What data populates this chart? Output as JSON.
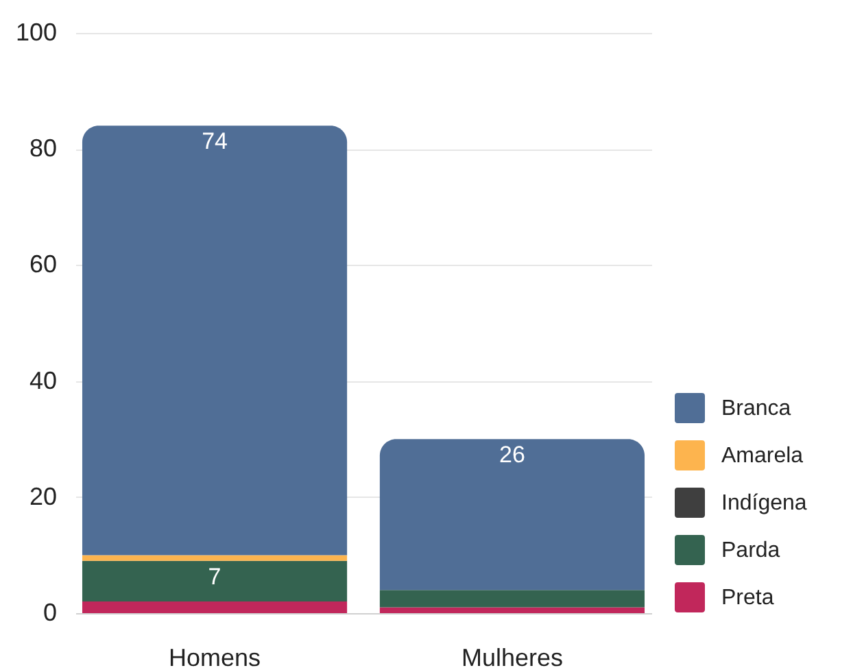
{
  "chart_data": {
    "type": "bar",
    "stacked": true,
    "categories": [
      "Homens",
      "Mulheres"
    ],
    "series": [
      {
        "name": "Preta",
        "color": "#c1275b",
        "values": [
          2,
          1
        ]
      },
      {
        "name": "Parda",
        "color": "#346350",
        "values": [
          7,
          3
        ],
        "value_labels": [
          "7",
          null
        ]
      },
      {
        "name": "Indígena",
        "color": "#3f3f3f",
        "values": [
          0,
          0
        ]
      },
      {
        "name": "Amarela",
        "color": "#fdb44e",
        "values": [
          1,
          0
        ]
      },
      {
        "name": "Branca",
        "color": "#506e96",
        "values": [
          74,
          26
        ],
        "value_labels": [
          "74",
          "26"
        ]
      }
    ],
    "ylim": [
      0,
      100
    ],
    "yticks": [
      0,
      20,
      40,
      60,
      80,
      100
    ],
    "grid": "y",
    "legend": "right"
  }
}
